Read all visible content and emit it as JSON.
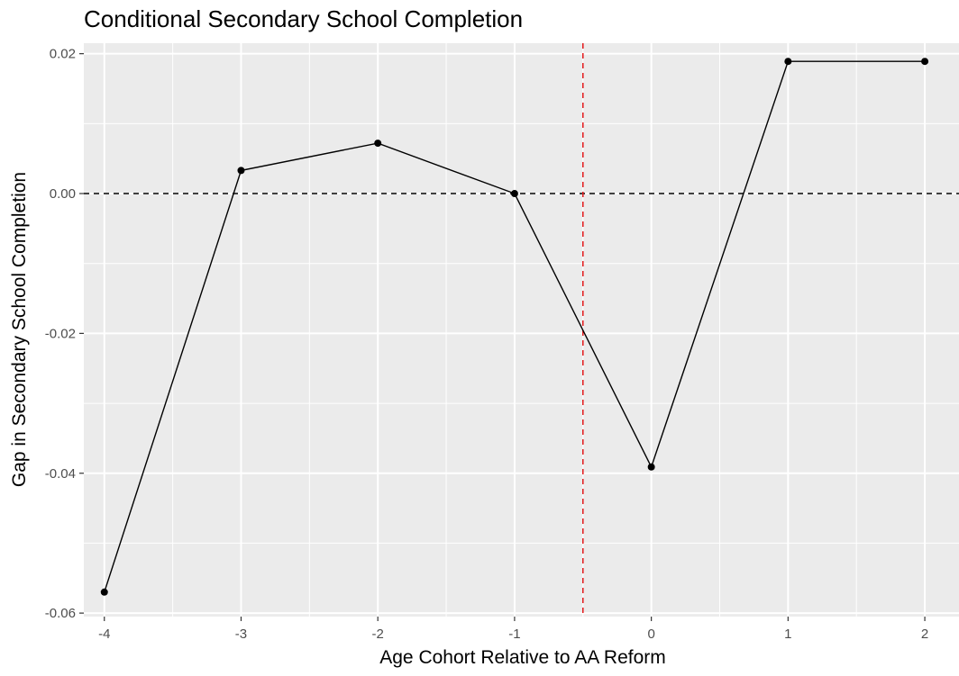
{
  "chart_data": {
    "type": "line",
    "title": "Conditional Secondary School Completion",
    "xlabel": "Age Cohort Relative to AA Reform",
    "ylabel": "Gap in Secondary School Completion",
    "x": [
      -4,
      -3,
      -2,
      -1,
      0,
      1,
      2
    ],
    "series": [
      {
        "values": [
          -0.057,
          0.0033,
          0.0072,
          0.0,
          -0.0391,
          0.0189,
          0.0189
        ]
      }
    ],
    "xlim": [
      -4.15,
      2.25
    ],
    "ylim": [
      -0.0605,
      0.0215
    ],
    "x_ticks": [
      -4,
      -3,
      -2,
      -1,
      0,
      1,
      2
    ],
    "x_tick_labels": [
      "-4",
      "-3",
      "-2",
      "-1",
      "0",
      "1",
      "2"
    ],
    "y_ticks": [
      -0.06,
      -0.04,
      -0.02,
      0.0,
      0.02
    ],
    "y_tick_labels": [
      "-0.06",
      "-0.04",
      "-0.02",
      "0.00",
      "0.02"
    ],
    "reference_lines": [
      {
        "orientation": "horizontal",
        "value": 0.0,
        "style": "dashed",
        "color": "#000000"
      },
      {
        "orientation": "vertical",
        "value": -0.5,
        "style": "dashed",
        "color": "#e41a1c"
      }
    ],
    "grid": true,
    "legend": "none",
    "colors": {
      "panel": "#ebebeb",
      "grid": "#ffffff",
      "line": "#000000"
    }
  }
}
